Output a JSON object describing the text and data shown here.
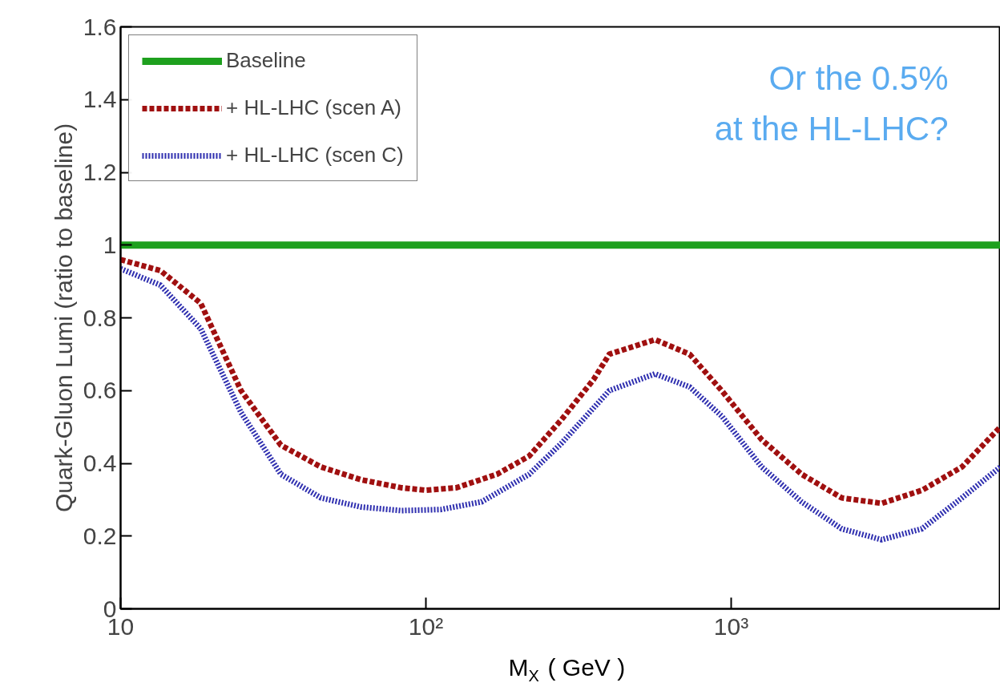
{
  "chart_data": {
    "type": "line",
    "xlabel": "M$_{X}$ ( GeV )",
    "ylabel": "Quark-Gluon Lumi (ratio to baseline)",
    "annotations": [
      "Or the 0.5% at the HL-LHC?"
    ],
    "log": "x",
    "xlim": [
      10,
      7620
    ],
    "ylim": [
      0,
      1.6
    ],
    "xticks": [
      10,
      {
        "value": 100,
        "label": "10²"
      },
      {
        "value": 1000,
        "label": "10³"
      }
    ],
    "yticks": [
      0,
      0.2,
      0.4,
      0.6,
      0.8,
      1,
      1.2,
      1.4,
      1.6
    ],
    "legend": "top left",
    "series": [
      {
        "name": "Baseline",
        "color": "#1ea01e",
        "line_style": "solid",
        "x": [
          10,
          7620
        ],
        "values": [
          1,
          1
        ]
      },
      {
        "name": "+ HL-LHC (scen A)",
        "color": "#a01010",
        "line_style": "dashed",
        "x": [
          10,
          13.5,
          18.3,
          24.8,
          33.5,
          45.3,
          61.3,
          83,
          100,
          126,
          171,
          218,
          278,
          354,
          399,
          563,
          731,
          931,
          1259,
          1702,
          2301,
          3112,
          4217,
          5702,
          7620
        ],
        "values": [
          0.96,
          0.93,
          0.84,
          0.6,
          0.45,
          0.39,
          0.355,
          0.333,
          0.326,
          0.333,
          0.37,
          0.42,
          0.52,
          0.63,
          0.7,
          0.74,
          0.7,
          0.6,
          0.465,
          0.37,
          0.305,
          0.29,
          0.326,
          0.39,
          0.5
        ]
      },
      {
        "name": "+ HL-LHC (scen C)",
        "color": "#3030b0",
        "line_style": "dotted",
        "x": [
          10,
          13.5,
          18.3,
          24.8,
          33.5,
          45.3,
          61.3,
          83,
          112,
          152,
          218,
          278,
          399,
          563,
          731,
          931,
          1259,
          1702,
          2301,
          3112,
          4217,
          5702,
          7620
        ],
        "values": [
          0.935,
          0.89,
          0.77,
          0.54,
          0.37,
          0.305,
          0.28,
          0.27,
          0.273,
          0.294,
          0.37,
          0.455,
          0.6,
          0.646,
          0.61,
          0.53,
          0.39,
          0.294,
          0.22,
          0.19,
          0.22,
          0.305,
          0.39
        ]
      }
    ]
  }
}
